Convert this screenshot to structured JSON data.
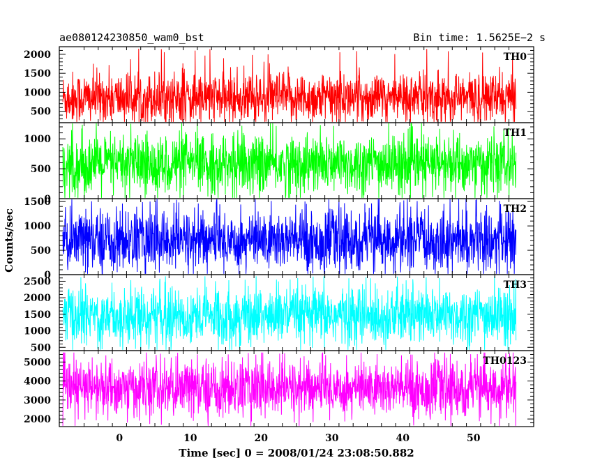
{
  "header": {
    "title": "ae080124230850_wam0_bst",
    "bin_time": "Bin time: 1.5625E−2 s"
  },
  "chart_data": {
    "type": "line",
    "title": "ae080124230850_wam0_bst",
    "subtitle": "Bin time: 1.5625E−2 s",
    "xlabel": "Time [sec] 0 = 2008/01/24 23:08:50.882",
    "ylabel": "Counts/sec",
    "xlim": [
      -8.5,
      58.5
    ],
    "x_ticks": [
      0,
      10,
      20,
      30,
      40,
      50
    ],
    "x_tick_labels": [
      "0",
      "10",
      "20",
      "30",
      "40",
      "50"
    ],
    "x_data_range": [
      -8.0,
      56.0
    ],
    "bin_width_sec": 0.015625,
    "grid": false,
    "series": [
      {
        "name": "TH0",
        "color": "#ff0000",
        "ylim": [
          200,
          2200
        ],
        "yticks": [
          500,
          1000,
          1500,
          2000
        ],
        "ytick_labels": [
          "500",
          "1000",
          "1500",
          "2000"
        ],
        "mean": 850,
        "typical_min": 150,
        "typical_max": 1650,
        "peak_max": 2150
      },
      {
        "name": "TH1",
        "color": "#00ff00",
        "ylim": [
          0,
          1270
        ],
        "yticks": [
          0,
          500,
          1000
        ],
        "ytick_labels": [
          "0",
          "500",
          "1000"
        ],
        "mean": 570,
        "typical_min": 20,
        "typical_max": 1150,
        "peak_max": 1260
      },
      {
        "name": "TH2",
        "color": "#0000ff",
        "ylim": [
          0,
          1560
        ],
        "yticks": [
          0,
          500,
          1000,
          1500
        ],
        "ytick_labels": [
          "0",
          "500",
          "1000",
          "1500"
        ],
        "mean": 700,
        "typical_min": 20,
        "typical_max": 1450,
        "peak_max": 1550
      },
      {
        "name": "TH3",
        "color": "#00ffff",
        "ylim": [
          400,
          2700
        ],
        "yticks": [
          500,
          1000,
          1500,
          2000,
          2500
        ],
        "ytick_labels": [
          "500",
          "1000",
          "1500",
          "2000",
          "2500"
        ],
        "mean": 1450,
        "typical_min": 550,
        "typical_max": 2550,
        "peak_max": 2650
      },
      {
        "name": "TH0123",
        "color": "#ff00ff",
        "ylim": [
          1600,
          5600
        ],
        "yticks": [
          2000,
          3000,
          4000,
          5000
        ],
        "ytick_labels": [
          "2000",
          "3000",
          "4000",
          "5000"
        ],
        "mean": 3600,
        "typical_min": 1900,
        "typical_max": 5300,
        "peak_max": 5500
      }
    ]
  }
}
